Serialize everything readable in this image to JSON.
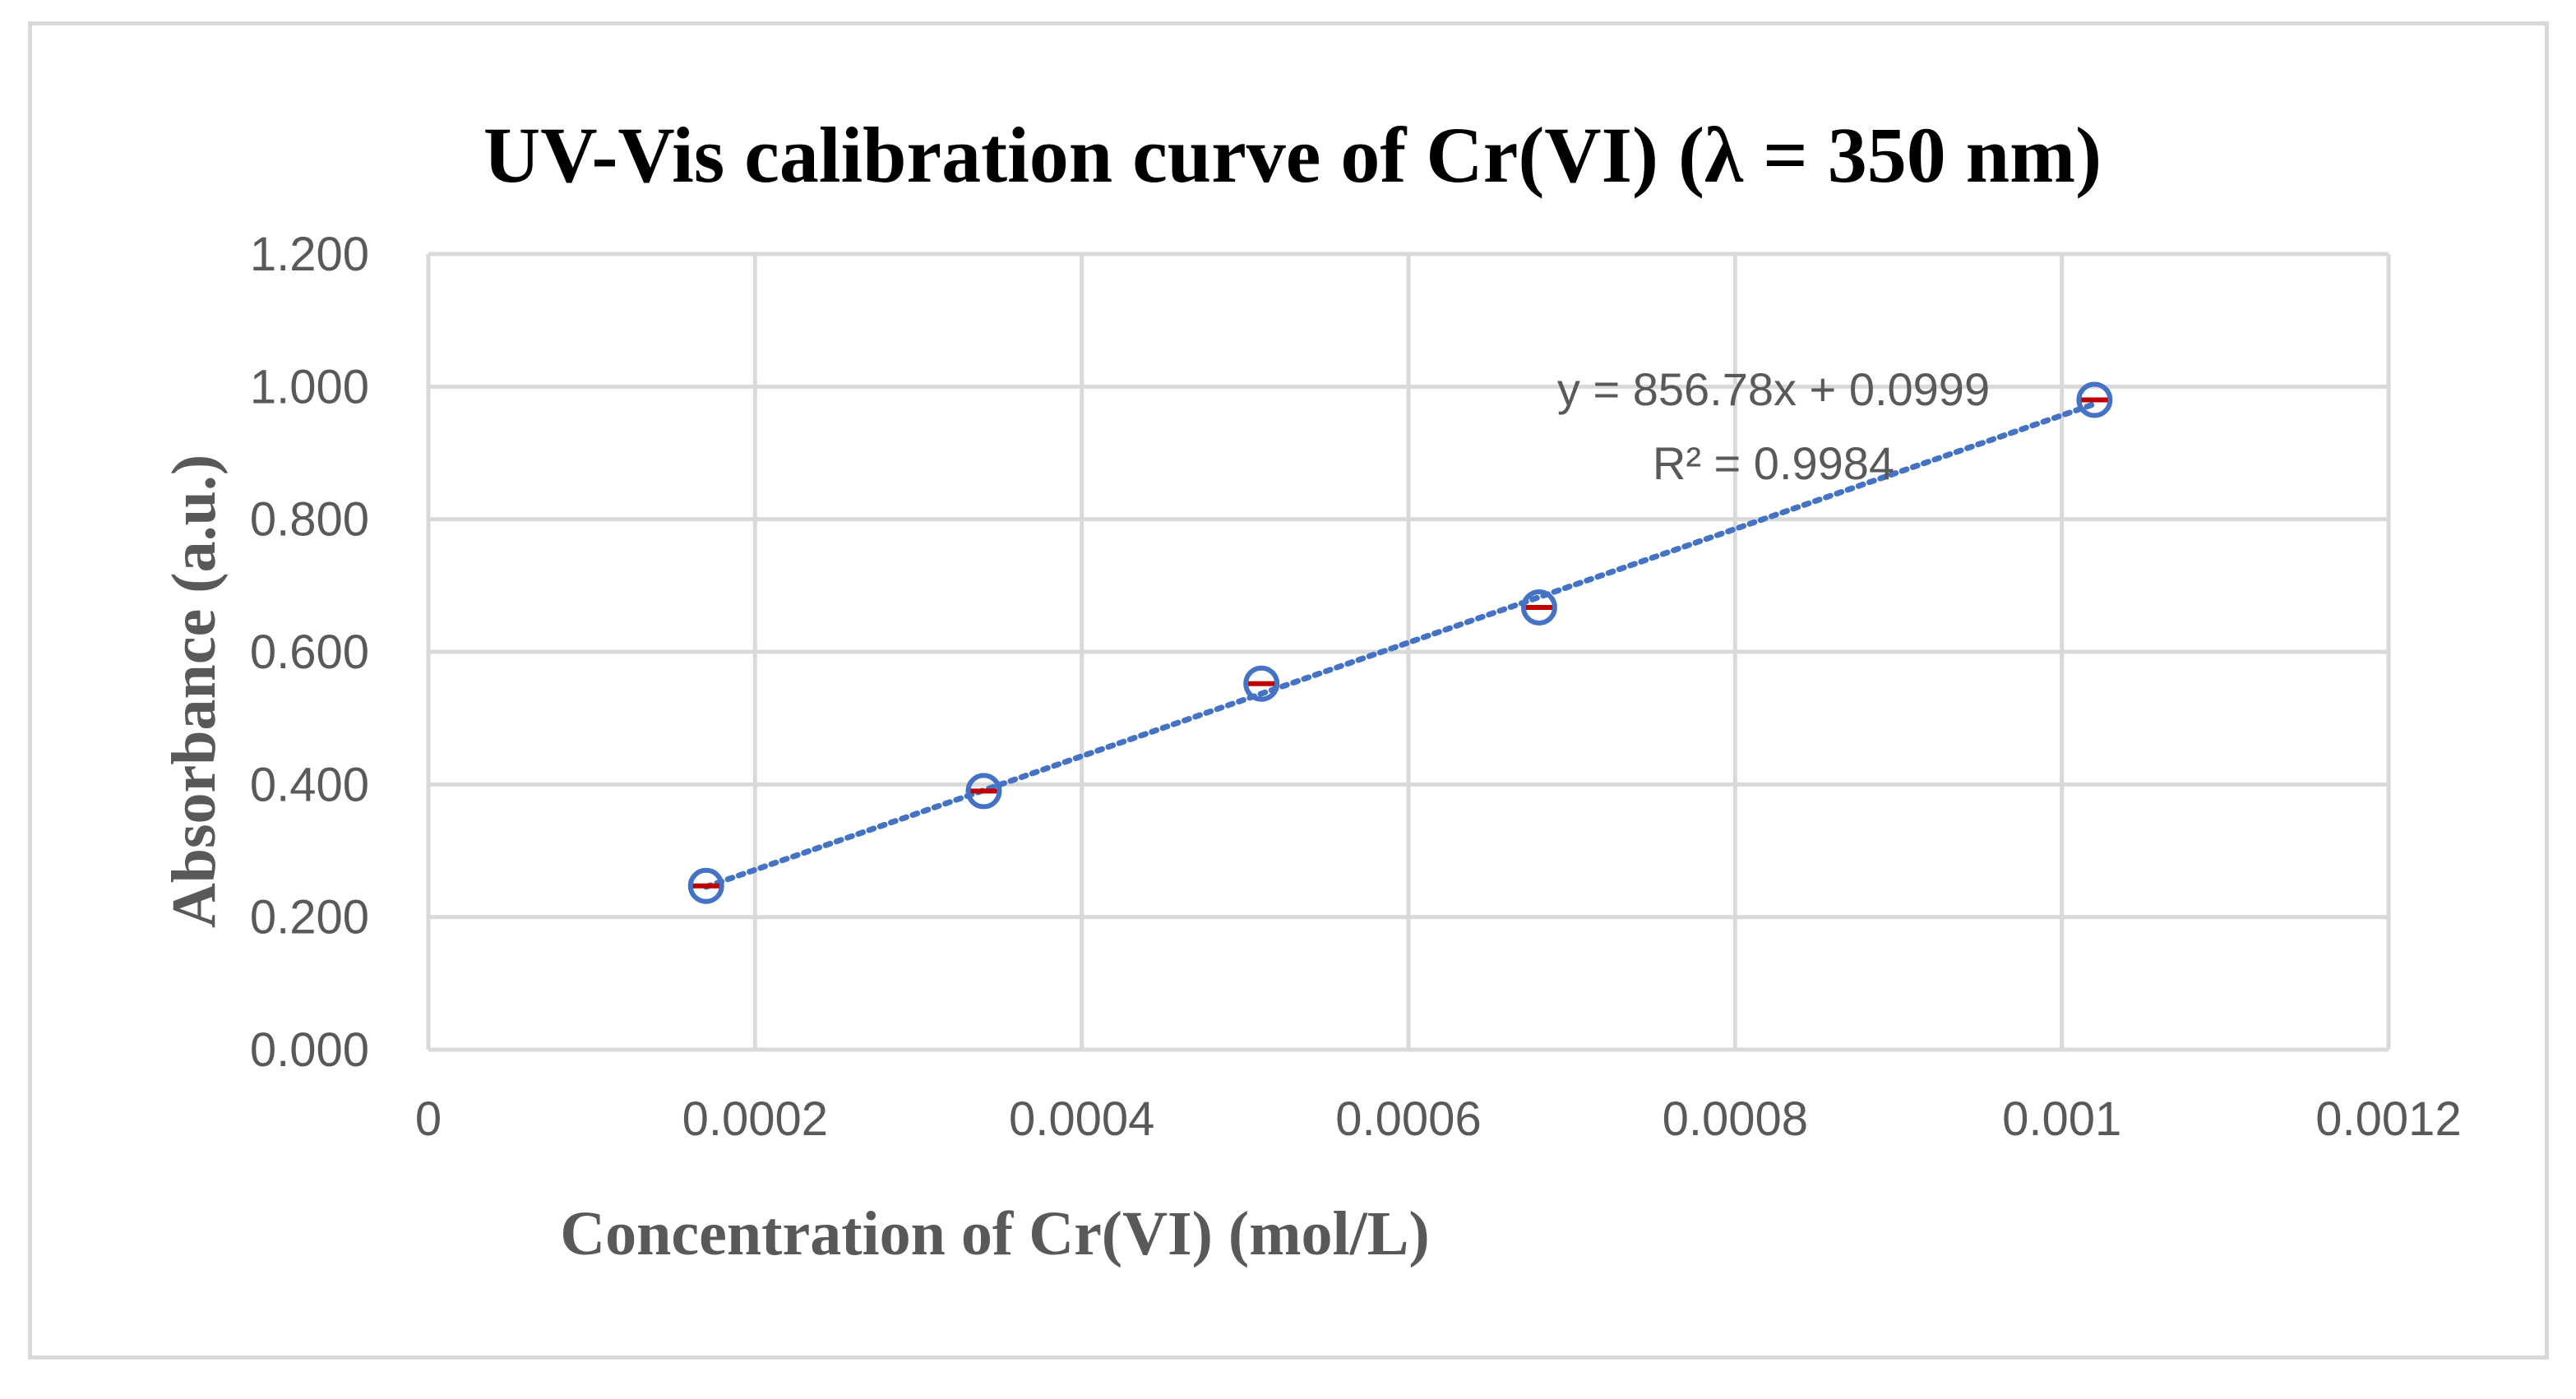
{
  "chart_data": {
    "type": "scatter",
    "title": "UV-Vis calibration curve of Cr(VI) (λ = 350 nm)",
    "xlabel": "Concentration of Cr(VI) (mol/L)",
    "ylabel": "Absorbance (a.u.)",
    "xlim": [
      0,
      0.0012
    ],
    "ylim": [
      0,
      1.2
    ],
    "x_ticks": [
      0,
      0.0002,
      0.0004,
      0.0006,
      0.0008,
      0.001,
      0.0012
    ],
    "x_tick_labels": [
      "0",
      "0.0002",
      "0.0004",
      "0.0006",
      "0.0008",
      "0.001",
      "0.0012"
    ],
    "y_ticks": [
      0,
      0.2,
      0.4,
      0.6,
      0.8,
      1.0,
      1.2
    ],
    "y_tick_labels": [
      "0.000",
      "0.200",
      "0.400",
      "0.600",
      "0.800",
      "1.000",
      "1.200"
    ],
    "grid": true,
    "series": [
      {
        "name": "Absorbance",
        "x": [
          0.00017,
          0.00034,
          0.00051,
          0.00068,
          0.00102
        ],
        "y": [
          0.247,
          0.39,
          0.552,
          0.667,
          0.98
        ],
        "marker": "open-circle",
        "color": "#4472c4",
        "error_bar_color": "#c00000"
      }
    ],
    "trendline": {
      "type": "linear",
      "slope": 856.78,
      "intercept": 0.0999,
      "x_range": [
        0.00017,
        0.00102
      ],
      "style": "dotted",
      "color": "#4472c4",
      "equation_label": "y = 856.78x + 0.0999",
      "r2_label": "R² = 0.9984"
    },
    "colors": {
      "gridline": "#d9d9d9",
      "text": "#595959",
      "title": "#000000"
    }
  }
}
